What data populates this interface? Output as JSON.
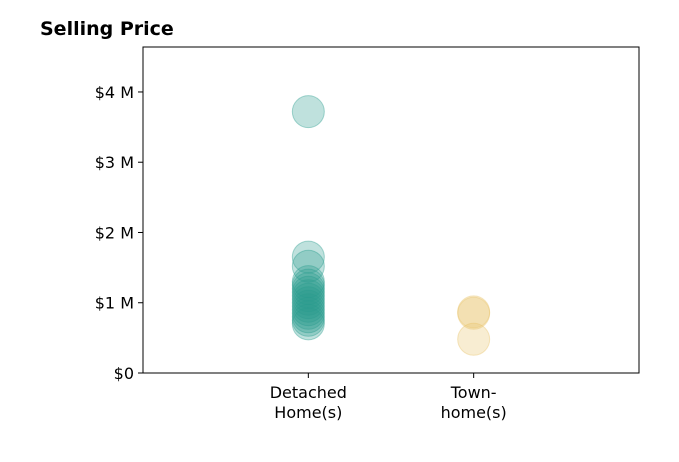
{
  "chart_data": {
    "type": "strip",
    "title": "Selling Price",
    "categories": [
      "Detached\nHome(s)",
      "Town-\nhome(s)"
    ],
    "values": [
      [
        3720000,
        1650000,
        1520000,
        1300000,
        1250000,
        1200000,
        1150000,
        1100000,
        1050000,
        1000000,
        950000,
        900000,
        850000,
        800000,
        750000,
        700000
      ],
      [
        870000,
        850000,
        480000
      ]
    ],
    "colors": [
      "#2a9d8f",
      "#e9c46a"
    ],
    "ylim": [
      0,
      4640000
    ],
    "yticks": [
      {
        "value": 0,
        "label": "$0"
      },
      {
        "value": 1000000,
        "label": "$1 M"
      },
      {
        "value": 2000000,
        "label": "$2 M"
      },
      {
        "value": 3000000,
        "label": "$3 M"
      },
      {
        "value": 4000000,
        "label": "$4 M"
      }
    ]
  }
}
